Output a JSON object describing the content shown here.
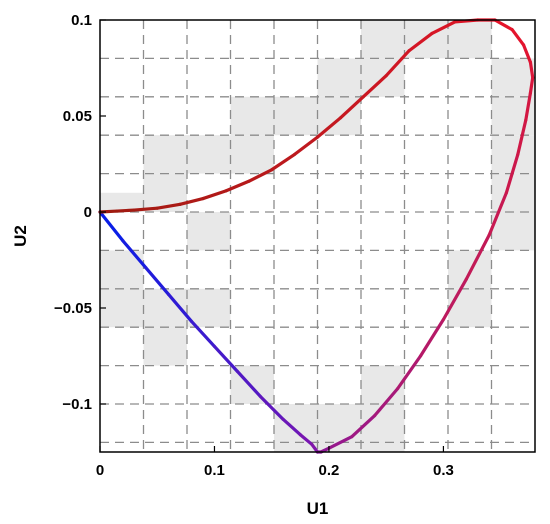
{
  "chart_data": {
    "type": "line",
    "xlabel": "U1",
    "ylabel": "U2",
    "xlim": [
      0,
      0.38
    ],
    "ylim": [
      -0.125,
      0.1
    ],
    "x_ticks": [
      0,
      0.1,
      0.2,
      0.3
    ],
    "x_tick_labels": [
      "0",
      "0.1",
      "0.2",
      "0.3"
    ],
    "y_ticks": [
      0.1,
      0.05,
      0,
      -0.05,
      -0.1
    ],
    "y_tick_labels": [
      "0.1",
      "0.05",
      "0",
      "−0.05",
      "−0.1"
    ],
    "grid": true,
    "grid_style": "dashed",
    "grid_x": [
      0.038,
      0.076,
      0.114,
      0.152,
      0.19,
      0.228,
      0.266,
      0.304,
      0.342
    ],
    "grid_y": [
      0.08,
      0.06,
      0.04,
      0.02,
      0.0,
      -0.02,
      -0.04,
      -0.06,
      -0.08,
      -0.1,
      -0.12
    ],
    "shaded_cells_note": "checkerboard-like light grey cells behind the curve",
    "shaded_cells": [
      {
        "x": [
          0.228,
          0.266
        ],
        "y": [
          0.08,
          0.1
        ]
      },
      {
        "x": [
          0.266,
          0.304
        ],
        "y": [
          0.08,
          0.1
        ]
      },
      {
        "x": [
          0.304,
          0.342
        ],
        "y": [
          0.08,
          0.1
        ]
      },
      {
        "x": [
          0.19,
          0.228
        ],
        "y": [
          0.06,
          0.08
        ]
      },
      {
        "x": [
          0.228,
          0.266
        ],
        "y": [
          0.06,
          0.08
        ]
      },
      {
        "x": [
          0.19,
          0.228
        ],
        "y": [
          0.04,
          0.06
        ]
      },
      {
        "x": [
          0.114,
          0.152
        ],
        "y": [
          0.02,
          0.04
        ]
      },
      {
        "x": [
          0.152,
          0.19
        ],
        "y": [
          0.04,
          0.06
        ]
      },
      {
        "x": [
          0.114,
          0.152
        ],
        "y": [
          0.04,
          0.06
        ]
      },
      {
        "x": [
          0.038,
          0.076
        ],
        "y": [
          0.02,
          0.04
        ]
      },
      {
        "x": [
          0.038,
          0.076
        ],
        "y": [
          0.0,
          0.02
        ]
      },
      {
        "x": [
          0.076,
          0.114
        ],
        "y": [
          0.02,
          0.04
        ]
      },
      {
        "x": [
          0.0,
          0.038
        ],
        "y": [
          0.0,
          0.01
        ]
      },
      {
        "x": [
          0.342,
          0.38
        ],
        "y": [
          0.06,
          0.08
        ]
      },
      {
        "x": [
          0.342,
          0.38
        ],
        "y": [
          0.04,
          0.06
        ]
      },
      {
        "x": [
          0.342,
          0.38
        ],
        "y": [
          0.02,
          0.04
        ]
      },
      {
        "x": [
          0.342,
          0.38
        ],
        "y": [
          0.0,
          0.02
        ]
      },
      {
        "x": [
          0.342,
          0.38
        ],
        "y": [
          -0.02,
          0.0
        ]
      },
      {
        "x": [
          0.076,
          0.114
        ],
        "y": [
          -0.02,
          0.0
        ]
      },
      {
        "x": [
          0.0,
          0.038
        ],
        "y": [
          -0.06,
          -0.02
        ]
      },
      {
        "x": [
          0.038,
          0.076
        ],
        "y": [
          -0.08,
          -0.06
        ]
      },
      {
        "x": [
          0.038,
          0.076
        ],
        "y": [
          -0.06,
          -0.04
        ]
      },
      {
        "x": [
          0.076,
          0.114
        ],
        "y": [
          -0.06,
          -0.04
        ]
      },
      {
        "x": [
          0.114,
          0.152
        ],
        "y": [
          -0.1,
          -0.08
        ]
      },
      {
        "x": [
          0.152,
          0.19
        ],
        "y": [
          -0.12,
          -0.1
        ]
      },
      {
        "x": [
          0.152,
          0.19
        ],
        "y": [
          -0.125,
          -0.12
        ]
      },
      {
        "x": [
          0.19,
          0.228
        ],
        "y": [
          -0.125,
          -0.1
        ]
      },
      {
        "x": [
          0.228,
          0.266
        ],
        "y": [
          -0.1,
          -0.08
        ]
      },
      {
        "x": [
          0.228,
          0.266
        ],
        "y": [
          -0.125,
          -0.1
        ]
      },
      {
        "x": [
          0.304,
          0.342
        ],
        "y": [
          -0.04,
          -0.02
        ]
      },
      {
        "x": [
          0.304,
          0.342
        ],
        "y": [
          -0.06,
          -0.04
        ]
      }
    ],
    "series": [
      {
        "color_gradient": [
          "#0a1ee6",
          "#7a16b0",
          "#c01a5a",
          "#e6142a",
          "#c0191f",
          "#a01a10"
        ],
        "x": [
          0.0,
          0.02,
          0.04,
          0.06,
          0.08,
          0.1,
          0.12,
          0.14,
          0.16,
          0.175,
          0.185,
          0.19,
          0.193,
          0.2,
          0.22,
          0.24,
          0.26,
          0.28,
          0.3,
          0.32,
          0.34,
          0.355,
          0.365,
          0.372,
          0.376,
          0.378,
          0.376,
          0.37,
          0.36,
          0.345,
          0.33,
          0.31,
          0.29,
          0.27,
          0.25,
          0.23,
          0.21,
          0.19,
          0.17,
          0.15,
          0.13,
          0.11,
          0.09,
          0.07,
          0.05,
          0.03,
          0.015,
          0.0
        ],
        "y": [
          0.0,
          -0.015,
          -0.029,
          -0.043,
          -0.057,
          -0.07,
          -0.083,
          -0.096,
          -0.108,
          -0.116,
          -0.121,
          -0.125,
          -0.125,
          -0.123,
          -0.117,
          -0.106,
          -0.092,
          -0.075,
          -0.056,
          -0.035,
          -0.012,
          0.01,
          0.03,
          0.048,
          0.062,
          0.07,
          0.078,
          0.087,
          0.095,
          0.1,
          0.1,
          0.099,
          0.093,
          0.084,
          0.071,
          0.06,
          0.049,
          0.039,
          0.03,
          0.022,
          0.016,
          0.011,
          0.007,
          0.004,
          0.002,
          0.001,
          0.0005,
          0.0
        ]
      }
    ]
  }
}
